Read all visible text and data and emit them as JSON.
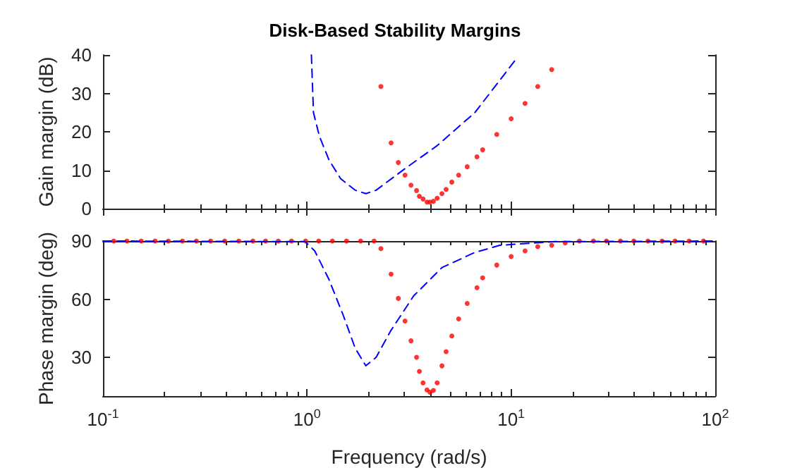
{
  "chart_data": [
    {
      "type": "line",
      "title": "Disk-Based Stability Margins",
      "ylabel": "Gain margin (dB)",
      "log": "x",
      "tick_labels": "y",
      "xlim": [
        0.1,
        100
      ],
      "xticks": [
        {
          "value": 0.1,
          "label": null
        },
        {
          "value": 1,
          "label": null
        },
        {
          "value": 10,
          "label": null
        },
        {
          "value": 100,
          "label": null
        }
      ],
      "ylim": [
        0,
        40
      ],
      "yticks": [
        0,
        10,
        20,
        30,
        40
      ],
      "series": [
        {
          "type": "line",
          "color": "#0000ff",
          "line_style": "dashed",
          "marker": "none",
          "x": [
            1.05,
            1.075,
            1.15,
            1.28,
            1.46,
            1.72,
            1.94,
            2.18,
            3.0,
            4.34,
            6.64,
            10.6
          ],
          "values": [
            40,
            25,
            18.8,
            12.7,
            7.8,
            4.8,
            3.9,
            4.8,
            10.3,
            16.4,
            25,
            39
          ]
        },
        {
          "type": "scatter",
          "color": "#ff0000",
          "marker": "circle",
          "x": [
            2.3,
            2.58,
            2.8,
            3.02,
            3.23,
            3.44,
            3.55,
            3.7,
            3.87,
            4.0,
            4.16,
            4.34,
            4.58,
            4.8,
            5.12,
            5.53,
            6.09,
            6.8,
            7.25,
            8.5,
            10.0,
            11.7,
            13.5,
            15.8
          ],
          "values": [
            31.8,
            17.1,
            12.0,
            8.7,
            6.1,
            4.7,
            3.2,
            2.5,
            1.7,
            1.7,
            1.9,
            2.7,
            3.9,
            5.0,
            6.9,
            8.7,
            10.9,
            13.5,
            15.3,
            19.3,
            23.4,
            27.4,
            31.8,
            36.2
          ]
        }
      ]
    },
    {
      "type": "line",
      "xlabel": "Frequency (rad/s)",
      "ylabel": "Phase margin (deg)",
      "log": "x",
      "xlim": [
        0.1,
        100
      ],
      "xticks": [
        {
          "value": 0.1,
          "label": "10$^{-1}$"
        },
        {
          "value": 1,
          "label": "10$^{0}$"
        },
        {
          "value": 10,
          "label": "10$^{1}$"
        },
        {
          "value": 100,
          "label": "10$^{2}$"
        }
      ],
      "ylim": [
        10,
        90
      ],
      "yticks": [
        30,
        60,
        90
      ],
      "series": [
        {
          "type": "line",
          "color": "#0000ff",
          "line_style": "dashed",
          "marker": "none",
          "x": [
            0.1,
            0.98,
            1.09,
            1.28,
            1.5,
            1.72,
            1.94,
            2.18,
            2.56,
            3.33,
            4.58,
            6.64,
            8.8,
            16.4,
            100
          ],
          "values": [
            90,
            89.7,
            84.9,
            70.2,
            52,
            34.8,
            25.6,
            30,
            43.4,
            61.7,
            76.3,
            84.1,
            87.8,
            89.7,
            90
          ]
        },
        {
          "type": "scatter",
          "color": "#ff0000",
          "marker": "circle",
          "x": [
            0.113,
            0.131,
            0.154,
            0.18,
            0.209,
            0.245,
            0.287,
            0.337,
            0.395,
            0.463,
            0.543,
            0.626,
            0.723,
            0.839,
            0.984,
            1.14,
            1.33,
            1.56,
            1.83,
            2.13,
            2.3,
            2.58,
            2.8,
            3.02,
            3.23,
            3.44,
            3.55,
            3.7,
            3.87,
            4.0,
            4.16,
            4.34,
            4.58,
            4.8,
            5.12,
            5.53,
            6.09,
            6.8,
            7.25,
            8.5,
            10.0,
            11.7,
            13.5,
            15.8,
            18.4,
            21.6,
            25.3,
            29.3,
            34.3,
            39.9,
            46.8,
            54.9,
            63.5,
            74.5,
            87.6
          ],
          "values": [
            90,
            90,
            90,
            90,
            90,
            90,
            90,
            90,
            90,
            90,
            90,
            90,
            90,
            90,
            90,
            90,
            90,
            90,
            90,
            90,
            86.1,
            72.9,
            60.4,
            48.7,
            38.5,
            30.0,
            22.7,
            16.8,
            13.2,
            12.0,
            12.9,
            16.8,
            25.6,
            32.9,
            41.0,
            49.8,
            57.8,
            65.9,
            71.0,
            77.6,
            82.0,
            84.9,
            87.1,
            87.8,
            89,
            90,
            90,
            90,
            90,
            90,
            90,
            90,
            90,
            90,
            90
          ]
        }
      ]
    }
  ]
}
